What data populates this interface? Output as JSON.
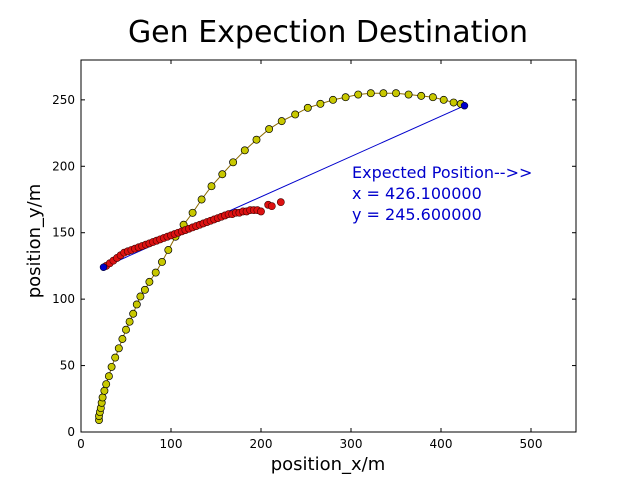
{
  "chart_data": {
    "type": "scatter",
    "title": "Gen Expection Destination",
    "xlabel": "position_x/m",
    "ylabel": "position_y/m",
    "xlim": [
      0,
      550
    ],
    "ylim": [
      0,
      280
    ],
    "xticks": [
      0,
      100,
      200,
      300,
      400,
      500
    ],
    "yticks": [
      0,
      50,
      100,
      150,
      200,
      250
    ],
    "grid": false,
    "annotation": {
      "lines": [
        "Expected Position-->>",
        "x = 426.100000",
        "y = 245.600000"
      ],
      "color": "#0000cc"
    },
    "series": [
      {
        "style": "yellow-markers-with-line",
        "color": "#c8c800",
        "line_color": "#8a6a00",
        "points": [
          [
            20,
            9
          ],
          [
            20,
            12
          ],
          [
            21,
            15
          ],
          [
            22,
            18
          ],
          [
            23,
            22
          ],
          [
            24,
            26
          ],
          [
            26,
            31
          ],
          [
            28,
            36
          ],
          [
            31,
            42
          ],
          [
            34,
            49
          ],
          [
            38,
            56
          ],
          [
            42,
            63
          ],
          [
            46,
            70
          ],
          [
            50,
            77
          ],
          [
            54,
            83
          ],
          [
            58,
            89
          ],
          [
            62,
            96
          ],
          [
            66,
            102
          ],
          [
            71,
            107
          ],
          [
            76,
            113
          ],
          [
            83,
            120
          ],
          [
            90,
            128
          ],
          [
            97,
            137
          ],
          [
            105,
            147
          ],
          [
            114,
            156
          ],
          [
            124,
            165
          ],
          [
            134,
            175
          ],
          [
            145,
            185
          ],
          [
            157,
            194
          ],
          [
            169,
            203
          ],
          [
            182,
            212
          ],
          [
            195,
            220
          ],
          [
            209,
            228
          ],
          [
            223,
            234
          ],
          [
            238,
            239
          ],
          [
            252,
            244
          ],
          [
            266,
            247
          ],
          [
            280,
            250
          ],
          [
            294,
            252
          ],
          [
            308,
            254
          ],
          [
            322,
            255
          ],
          [
            336,
            255
          ],
          [
            350,
            255
          ],
          [
            364,
            254
          ],
          [
            378,
            253
          ],
          [
            391,
            252
          ],
          [
            403,
            250
          ],
          [
            414,
            248
          ],
          [
            422,
            247
          ]
        ]
      },
      {
        "style": "red-markers",
        "color": "#dd1111",
        "points": [
          [
            28,
            125
          ],
          [
            32,
            127
          ],
          [
            36,
            129
          ],
          [
            40,
            131
          ],
          [
            44,
            133
          ],
          [
            48,
            135
          ],
          [
            52,
            136
          ],
          [
            56,
            137
          ],
          [
            60,
            138
          ],
          [
            64,
            139
          ],
          [
            68,
            140
          ],
          [
            72,
            141
          ],
          [
            76,
            142
          ],
          [
            80,
            143
          ],
          [
            84,
            144
          ],
          [
            88,
            145
          ],
          [
            92,
            146
          ],
          [
            96,
            147
          ],
          [
            100,
            148
          ],
          [
            104,
            149
          ],
          [
            108,
            150
          ],
          [
            112,
            151
          ],
          [
            116,
            152
          ],
          [
            120,
            153
          ],
          [
            124,
            154
          ],
          [
            128,
            155
          ],
          [
            132,
            156
          ],
          [
            136,
            157
          ],
          [
            140,
            158
          ],
          [
            144,
            159
          ],
          [
            148,
            160
          ],
          [
            152,
            161
          ],
          [
            156,
            162
          ],
          [
            160,
            163
          ],
          [
            164,
            164
          ],
          [
            168,
            164
          ],
          [
            172,
            165
          ],
          [
            176,
            165
          ],
          [
            180,
            166
          ],
          [
            184,
            166
          ],
          [
            188,
            167
          ],
          [
            192,
            167
          ],
          [
            196,
            167
          ],
          [
            200,
            166
          ],
          [
            208,
            171
          ],
          [
            212,
            170
          ],
          [
            222,
            173
          ]
        ]
      },
      {
        "style": "blue-line-with-endpoints",
        "color": "#0000cc",
        "points": [
          [
            25,
            124
          ],
          [
            426.1,
            245.6
          ]
        ]
      }
    ]
  }
}
